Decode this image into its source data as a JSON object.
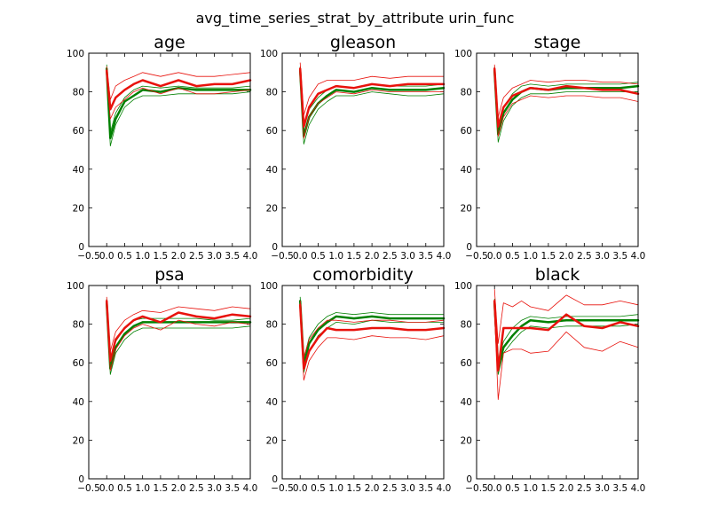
{
  "figure": {
    "suptitle": "avg_time_series_strat_by_attribute urin_func"
  },
  "colors": {
    "group_a": "#008000",
    "group_b": "#e8120c"
  },
  "chart_data": [
    {
      "type": "line",
      "title": "age",
      "xlim": [
        -0.5,
        4.0
      ],
      "ylim": [
        0,
        100
      ],
      "xticks": [
        "−0.5",
        "0.0",
        "0.5",
        "1.0",
        "1.5",
        "2.0",
        "2.5",
        "3.0",
        "3.5",
        "4.0"
      ],
      "yticks": [
        "0",
        "20",
        "40",
        "60",
        "80",
        "100"
      ],
      "x": [
        0.0,
        0.1,
        0.25,
        0.5,
        0.75,
        1.0,
        1.5,
        2.0,
        2.5,
        3.0,
        3.5,
        4.0
      ],
      "series": [
        {
          "color": "group_a",
          "width": 2.5,
          "values": [
            92,
            56,
            66,
            75,
            78,
            81,
            80,
            82,
            81,
            81,
            81,
            81
          ]
        },
        {
          "color": "group_a",
          "width": 0.8,
          "values": [
            94,
            59,
            69,
            77,
            81,
            83,
            82,
            83,
            82,
            82,
            82,
            83
          ]
        },
        {
          "color": "group_a",
          "width": 0.8,
          "values": [
            90,
            52,
            63,
            72,
            76,
            78,
            78,
            79,
            79,
            79,
            79,
            80
          ]
        },
        {
          "color": "group_b",
          "width": 2.5,
          "values": [
            91,
            71,
            77,
            81,
            84,
            86,
            83,
            86,
            83,
            84,
            84,
            86
          ]
        },
        {
          "color": "group_b",
          "width": 0.8,
          "values": [
            93,
            76,
            83,
            86,
            88,
            90,
            88,
            90,
            88,
            88,
            89,
            90
          ]
        },
        {
          "color": "group_b",
          "width": 0.8,
          "values": [
            89,
            66,
            72,
            76,
            80,
            82,
            79,
            82,
            79,
            79,
            80,
            81
          ]
        }
      ]
    },
    {
      "type": "line",
      "title": "gleason",
      "xlim": [
        -0.5,
        4.0
      ],
      "ylim": [
        0,
        100
      ],
      "xticks": [
        "−0.5",
        "0.0",
        "0.5",
        "1.0",
        "1.5",
        "2.0",
        "2.5",
        "3.0",
        "3.5",
        "4.0"
      ],
      "yticks": [
        "0",
        "20",
        "40",
        "60",
        "80",
        "100"
      ],
      "x": [
        0.0,
        0.1,
        0.25,
        0.5,
        0.75,
        1.0,
        1.5,
        2.0,
        2.5,
        3.0,
        3.5,
        4.0
      ],
      "series": [
        {
          "color": "group_a",
          "width": 2.5,
          "values": [
            91,
            57,
            67,
            74,
            78,
            81,
            80,
            82,
            81,
            81,
            81,
            82
          ]
        },
        {
          "color": "group_a",
          "width": 0.8,
          "values": [
            93,
            61,
            71,
            77,
            81,
            83,
            82,
            84,
            83,
            83,
            83,
            84
          ]
        },
        {
          "color": "group_a",
          "width": 0.8,
          "values": [
            89,
            53,
            63,
            71,
            75,
            78,
            78,
            80,
            79,
            78,
            78,
            79
          ]
        },
        {
          "color": "group_b",
          "width": 2.5,
          "values": [
            92,
            62,
            72,
            79,
            81,
            83,
            82,
            84,
            83,
            84,
            84,
            84
          ]
        },
        {
          "color": "group_b",
          "width": 0.8,
          "values": [
            95,
            68,
            77,
            84,
            86,
            86,
            86,
            88,
            87,
            88,
            88,
            88
          ]
        },
        {
          "color": "group_b",
          "width": 0.8,
          "values": [
            89,
            56,
            67,
            74,
            77,
            80,
            79,
            81,
            80,
            80,
            80,
            80
          ]
        }
      ]
    },
    {
      "type": "line",
      "title": "stage",
      "xlim": [
        -0.5,
        4.0
      ],
      "ylim": [
        0,
        100
      ],
      "xticks": [
        "−0.5",
        "0.0",
        "0.5",
        "1.0",
        "1.5",
        "2.0",
        "2.5",
        "3.0",
        "3.5",
        "4.0"
      ],
      "yticks": [
        "0",
        "20",
        "40",
        "60",
        "80",
        "100"
      ],
      "x": [
        0.0,
        0.1,
        0.25,
        0.5,
        0.75,
        1.0,
        1.5,
        2.0,
        2.5,
        3.0,
        3.5,
        4.0
      ],
      "series": [
        {
          "color": "group_a",
          "width": 2.5,
          "values": [
            91,
            58,
            69,
            76,
            80,
            82,
            81,
            82,
            82,
            82,
            82,
            83
          ]
        },
        {
          "color": "group_a",
          "width": 0.8,
          "values": [
            93,
            62,
            72,
            79,
            83,
            84,
            83,
            84,
            84,
            84,
            84,
            85
          ]
        },
        {
          "color": "group_a",
          "width": 0.8,
          "values": [
            89,
            54,
            65,
            73,
            77,
            79,
            79,
            80,
            80,
            80,
            80,
            80
          ]
        },
        {
          "color": "group_b",
          "width": 2.5,
          "values": [
            92,
            62,
            72,
            78,
            80,
            82,
            81,
            83,
            82,
            81,
            81,
            79
          ]
        },
        {
          "color": "group_b",
          "width": 0.8,
          "values": [
            94,
            67,
            77,
            82,
            84,
            86,
            85,
            86,
            86,
            85,
            85,
            84
          ]
        },
        {
          "color": "group_b",
          "width": 0.8,
          "values": [
            90,
            57,
            67,
            74,
            76,
            78,
            77,
            78,
            78,
            77,
            77,
            75
          ]
        }
      ]
    },
    {
      "type": "line",
      "title": "psa",
      "xlim": [
        -0.5,
        4.0
      ],
      "ylim": [
        0,
        100
      ],
      "xticks": [
        "−0.5",
        "0.0",
        "0.5",
        "1.0",
        "1.5",
        "2.0",
        "2.5",
        "3.0",
        "3.5",
        "4.0"
      ],
      "yticks": [
        "0",
        "20",
        "40",
        "60",
        "80",
        "100"
      ],
      "x": [
        0.0,
        0.1,
        0.25,
        0.5,
        0.75,
        1.0,
        1.5,
        2.0,
        2.5,
        3.0,
        3.5,
        4.0
      ],
      "series": [
        {
          "color": "group_a",
          "width": 2.5,
          "values": [
            91,
            57,
            68,
            75,
            79,
            81,
            81,
            81,
            81,
            81,
            81,
            81
          ]
        },
        {
          "color": "group_a",
          "width": 0.8,
          "values": [
            93,
            61,
            71,
            78,
            82,
            83,
            83,
            83,
            83,
            82,
            82,
            83
          ]
        },
        {
          "color": "group_a",
          "width": 0.8,
          "values": [
            89,
            54,
            65,
            72,
            76,
            78,
            78,
            78,
            78,
            78,
            78,
            79
          ]
        },
        {
          "color": "group_b",
          "width": 2.5,
          "values": [
            92,
            61,
            72,
            78,
            82,
            84,
            81,
            86,
            84,
            83,
            85,
            84
          ]
        },
        {
          "color": "group_b",
          "width": 0.8,
          "values": [
            94,
            66,
            76,
            82,
            85,
            87,
            86,
            89,
            88,
            87,
            89,
            88
          ]
        },
        {
          "color": "group_b",
          "width": 0.8,
          "values": [
            89,
            56,
            67,
            74,
            78,
            80,
            77,
            82,
            80,
            79,
            81,
            80
          ]
        }
      ]
    },
    {
      "type": "line",
      "title": "comorbidity",
      "xlim": [
        -0.5,
        4.0
      ],
      "ylim": [
        0,
        100
      ],
      "xticks": [
        "−0.5",
        "0.0",
        "0.5",
        "1.0",
        "1.5",
        "2.0",
        "2.5",
        "3.0",
        "3.5",
        "4.0"
      ],
      "yticks": [
        "0",
        "20",
        "40",
        "60",
        "80",
        "100"
      ],
      "x": [
        0.0,
        0.1,
        0.25,
        0.5,
        0.75,
        1.0,
        1.5,
        2.0,
        2.5,
        3.0,
        3.5,
        4.0
      ],
      "series": [
        {
          "color": "group_a",
          "width": 2.5,
          "values": [
            92,
            59,
            70,
            77,
            81,
            84,
            83,
            84,
            83,
            83,
            83,
            83
          ]
        },
        {
          "color": "group_a",
          "width": 0.8,
          "values": [
            94,
            62,
            73,
            80,
            84,
            86,
            85,
            86,
            85,
            85,
            85,
            85
          ]
        },
        {
          "color": "group_a",
          "width": 0.8,
          "values": [
            90,
            55,
            66,
            74,
            78,
            81,
            80,
            82,
            81,
            81,
            81,
            81
          ]
        },
        {
          "color": "group_b",
          "width": 2.5,
          "values": [
            90,
            57,
            66,
            73,
            78,
            77,
            77,
            78,
            78,
            77,
            77,
            78
          ]
        },
        {
          "color": "group_b",
          "width": 0.8,
          "values": [
            92,
            63,
            72,
            78,
            82,
            82,
            81,
            82,
            82,
            81,
            81,
            82
          ]
        },
        {
          "color": "group_b",
          "width": 0.8,
          "values": [
            88,
            51,
            61,
            68,
            73,
            73,
            72,
            74,
            73,
            73,
            72,
            74
          ]
        }
      ]
    },
    {
      "type": "line",
      "title": "black",
      "xlim": [
        -0.5,
        4.0
      ],
      "ylim": [
        0,
        100
      ],
      "xticks": [
        "−0.5",
        "0.0",
        "0.5",
        "1.0",
        "1.5",
        "2.0",
        "2.5",
        "3.0",
        "3.5",
        "4.0"
      ],
      "yticks": [
        "0",
        "20",
        "40",
        "60",
        "80",
        "100"
      ],
      "x": [
        0.0,
        0.1,
        0.25,
        0.5,
        0.75,
        1.0,
        1.5,
        2.0,
        2.5,
        3.0,
        3.5,
        4.0
      ],
      "series": [
        {
          "color": "group_a",
          "width": 2.5,
          "values": [
            91,
            57,
            68,
            74,
            79,
            82,
            81,
            82,
            82,
            82,
            82,
            82
          ]
        },
        {
          "color": "group_a",
          "width": 0.8,
          "values": [
            93,
            60,
            71,
            78,
            82,
            84,
            83,
            84,
            84,
            84,
            84,
            85
          ]
        },
        {
          "color": "group_a",
          "width": 0.8,
          "values": [
            89,
            54,
            65,
            71,
            76,
            79,
            78,
            79,
            79,
            79,
            79,
            80
          ]
        },
        {
          "color": "group_b",
          "width": 2.5,
          "values": [
            92,
            56,
            78,
            78,
            78,
            78,
            77,
            85,
            79,
            78,
            81,
            79
          ]
        },
        {
          "color": "group_b",
          "width": 0.8,
          "values": [
            98,
            70,
            91,
            89,
            92,
            89,
            87,
            95,
            90,
            90,
            92,
            90
          ]
        },
        {
          "color": "group_b",
          "width": 0.8,
          "values": [
            86,
            41,
            65,
            67,
            67,
            65,
            66,
            76,
            68,
            66,
            71,
            68
          ]
        }
      ]
    }
  ]
}
